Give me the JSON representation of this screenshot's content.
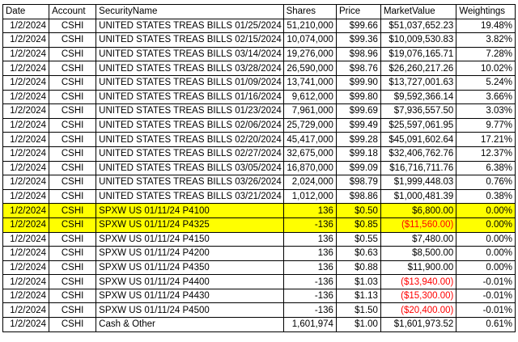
{
  "table": {
    "headers": [
      "Date",
      "Account",
      "SecurityName",
      "Shares",
      "Price",
      "MarketValue",
      "Weightings"
    ],
    "rows": [
      {
        "date": "1/2/2024",
        "account": "CSHI",
        "security": "UNITED STATES TREAS BILLS 01/25/2024",
        "shares": "51,210,000",
        "price": "$99.66",
        "market_value": "$51,037,652.23",
        "weighting": "19.48%",
        "negative": false,
        "highlight": false
      },
      {
        "date": "1/2/2024",
        "account": "CSHI",
        "security": "UNITED STATES TREAS BILLS 02/15/2024",
        "shares": "10,074,000",
        "price": "$99.36",
        "market_value": "$10,009,530.83",
        "weighting": "3.82%",
        "negative": false,
        "highlight": false
      },
      {
        "date": "1/2/2024",
        "account": "CSHI",
        "security": "UNITED STATES TREAS BILLS 03/14/2024",
        "shares": "19,276,000",
        "price": "$98.96",
        "market_value": "$19,076,165.71",
        "weighting": "7.28%",
        "negative": false,
        "highlight": false
      },
      {
        "date": "1/2/2024",
        "account": "CSHI",
        "security": "UNITED STATES TREAS BILLS 03/28/2024",
        "shares": "26,590,000",
        "price": "$98.76",
        "market_value": "$26,260,217.26",
        "weighting": "10.02%",
        "negative": false,
        "highlight": false
      },
      {
        "date": "1/2/2024",
        "account": "CSHI",
        "security": "UNITED STATES TREAS BILLS 01/09/2024",
        "shares": "13,741,000",
        "price": "$99.90",
        "market_value": "$13,727,001.63",
        "weighting": "5.24%",
        "negative": false,
        "highlight": false
      },
      {
        "date": "1/2/2024",
        "account": "CSHI",
        "security": "UNITED STATES TREAS BILLS 01/16/2024",
        "shares": "9,612,000",
        "price": "$99.80",
        "market_value": "$9,592,366.14",
        "weighting": "3.66%",
        "negative": false,
        "highlight": false
      },
      {
        "date": "1/2/2024",
        "account": "CSHI",
        "security": "UNITED STATES TREAS BILLS 01/23/2024",
        "shares": "7,961,000",
        "price": "$99.69",
        "market_value": "$7,936,557.50",
        "weighting": "3.03%",
        "negative": false,
        "highlight": false
      },
      {
        "date": "1/2/2024",
        "account": "CSHI",
        "security": "UNITED STATES TREAS BILLS 02/06/2024",
        "shares": "25,729,000",
        "price": "$99.49",
        "market_value": "$25,597,061.95",
        "weighting": "9.77%",
        "negative": false,
        "highlight": false
      },
      {
        "date": "1/2/2024",
        "account": "CSHI",
        "security": "UNITED STATES TREAS BILLS 02/20/2024",
        "shares": "45,417,000",
        "price": "$99.28",
        "market_value": "$45,091,602.64",
        "weighting": "17.21%",
        "negative": false,
        "highlight": false
      },
      {
        "date": "1/2/2024",
        "account": "CSHI",
        "security": "UNITED STATES TREAS BILLS 02/27/2024",
        "shares": "32,675,000",
        "price": "$99.18",
        "market_value": "$32,406,762.76",
        "weighting": "12.37%",
        "negative": false,
        "highlight": false
      },
      {
        "date": "1/2/2024",
        "account": "CSHI",
        "security": "UNITED STATES TREAS BILLS 03/05/2024",
        "shares": "16,870,000",
        "price": "$99.09",
        "market_value": "$16,716,711.76",
        "weighting": "6.38%",
        "negative": false,
        "highlight": false
      },
      {
        "date": "1/2/2024",
        "account": "CSHI",
        "security": "UNITED STATES TREAS BILLS 03/26/2024",
        "shares": "2,024,000",
        "price": "$98.79",
        "market_value": "$1,999,448.03",
        "weighting": "0.76%",
        "negative": false,
        "highlight": false
      },
      {
        "date": "1/2/2024",
        "account": "CSHI",
        "security": "UNITED STATES TREAS BILLS 03/21/2024",
        "shares": "1,012,000",
        "price": "$98.86",
        "market_value": "$1,000,481.39",
        "weighting": "0.38%",
        "negative": false,
        "highlight": false
      },
      {
        "date": "1/2/2024",
        "account": "CSHI",
        "security": "SPXW US 01/11/24 P4100",
        "shares": "136",
        "price": "$0.50",
        "market_value": "$6,800.00",
        "weighting": "0.00%",
        "negative": false,
        "highlight": true
      },
      {
        "date": "1/2/2024",
        "account": "CSHI",
        "security": "SPXW US 01/11/24 P4325",
        "shares": "-136",
        "price": "$0.85",
        "market_value": "($11,560.00)",
        "weighting": "0.00%",
        "negative": true,
        "highlight": true
      },
      {
        "date": "1/2/2024",
        "account": "CSHI",
        "security": "SPXW US 01/11/24 P4150",
        "shares": "136",
        "price": "$0.55",
        "market_value": "$7,480.00",
        "weighting": "0.00%",
        "negative": false,
        "highlight": false
      },
      {
        "date": "1/2/2024",
        "account": "CSHI",
        "security": "SPXW US 01/11/24 P4200",
        "shares": "136",
        "price": "$0.63",
        "market_value": "$8,500.00",
        "weighting": "0.00%",
        "negative": false,
        "highlight": false
      },
      {
        "date": "1/2/2024",
        "account": "CSHI",
        "security": "SPXW US 01/11/24 P4350",
        "shares": "136",
        "price": "$0.88",
        "market_value": "$11,900.00",
        "weighting": "0.00%",
        "negative": false,
        "highlight": false
      },
      {
        "date": "1/2/2024",
        "account": "CSHI",
        "security": "SPXW US 01/11/24 P4400",
        "shares": "-136",
        "price": "$1.03",
        "market_value": "($13,940.00)",
        "weighting": "-0.01%",
        "negative": true,
        "highlight": false
      },
      {
        "date": "1/2/2024",
        "account": "CSHI",
        "security": "SPXW US 01/11/24 P4430",
        "shares": "-136",
        "price": "$1.13",
        "market_value": "($15,300.00)",
        "weighting": "-0.01%",
        "negative": true,
        "highlight": false
      },
      {
        "date": "1/2/2024",
        "account": "CSHI",
        "security": "SPXW US 01/11/24 P4500",
        "shares": "-136",
        "price": "$1.50",
        "market_value": "($20,400.00)",
        "weighting": "-0.01%",
        "negative": true,
        "highlight": false
      },
      {
        "date": "1/2/2024",
        "account": "CSHI",
        "security": "Cash & Other",
        "shares": "1,601,974",
        "price": "$1.00",
        "market_value": "$1,601,973.52",
        "weighting": "0.61%",
        "negative": false,
        "highlight": false
      }
    ]
  },
  "colors": {
    "highlight": "#ffff00",
    "negative_text": "#ff0000",
    "border": "#000000"
  }
}
